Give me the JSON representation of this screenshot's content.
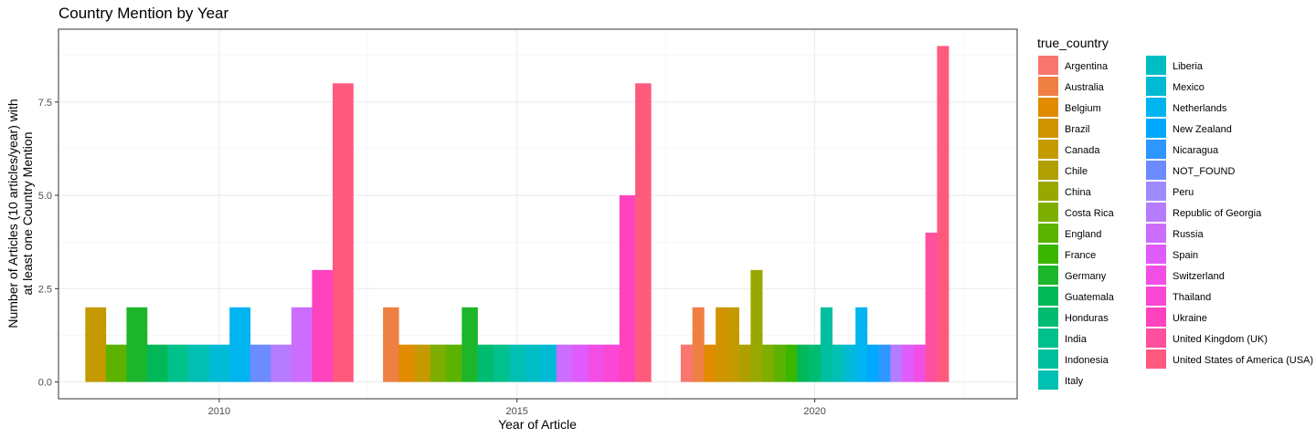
{
  "chart_data": {
    "type": "bar",
    "title": "Country Mention by Year",
    "xlabel": "Year of Article",
    "ylabel": [
      "Number of Articles (10 articles/year) with",
      "at least one Country Mention"
    ],
    "x_ticks": [
      2010,
      2015,
      2020
    ],
    "y_ticks": [
      "0.0",
      "2.5",
      "5.0",
      "7.5"
    ],
    "ylim": [
      0,
      9
    ],
    "grid": true,
    "legend_placement": "right",
    "legend_title": "true_country",
    "years": [
      2010,
      2015,
      2020
    ],
    "countries": [
      "Argentina",
      "Australia",
      "Belgium",
      "Brazil",
      "Canada",
      "Chile",
      "China",
      "Costa Rica",
      "England",
      "France",
      "Germany",
      "Guatemala",
      "Honduras",
      "India",
      "Indonesia",
      "Italy",
      "Liberia",
      "Mexico",
      "Netherlands",
      "New Zealand",
      "Nicaragua",
      "NOT_FOUND",
      "Peru",
      "Republic of Georgia",
      "Russia",
      "Spain",
      "Switzerland",
      "Thailand",
      "Ukraine",
      "United Kingdom (UK)",
      "United States of America (USA)"
    ],
    "colors": [
      "#F8766D",
      "#EE8044",
      "#E08B00",
      "#CF9400",
      "#C49A00",
      "#B09F00",
      "#99A800",
      "#7DAE00",
      "#5BB300",
      "#39B600",
      "#1CB52B",
      "#00B858",
      "#00BC72",
      "#00C08B",
      "#00BF9E",
      "#00BFB3",
      "#00BDC4",
      "#00BAD6",
      "#00B4EF",
      "#00A9FF",
      "#2E96FF",
      "#6B8BFF",
      "#A08AFF",
      "#B57CFF",
      "#CB6EFF",
      "#E05BFB",
      "#F04EE4",
      "#FA47D6",
      "#FF42BD",
      "#FF4F9F",
      "#FF5A7E"
    ],
    "series": [
      {
        "year": 2010,
        "bars": [
          {
            "country": "Canada",
            "value": 2
          },
          {
            "country": "England",
            "value": 1
          },
          {
            "country": "Germany",
            "value": 2
          },
          {
            "country": "Guatemala",
            "value": 1
          },
          {
            "country": "India",
            "value": 1
          },
          {
            "country": "Italy",
            "value": 1
          },
          {
            "country": "Mexico",
            "value": 1
          },
          {
            "country": "Netherlands",
            "value": 2
          },
          {
            "country": "NOT_FOUND",
            "value": 1
          },
          {
            "country": "Republic of Georgia",
            "value": 1
          },
          {
            "country": "Russia",
            "value": 2
          },
          {
            "country": "Ukraine",
            "value": 3
          },
          {
            "country": "United States of America (USA)",
            "value": 8
          }
        ]
      },
      {
        "year": 2015,
        "bars": [
          {
            "country": "Australia",
            "value": 2
          },
          {
            "country": "Belgium",
            "value": 1
          },
          {
            "country": "Canada",
            "value": 1
          },
          {
            "country": "Costa Rica",
            "value": 1
          },
          {
            "country": "England",
            "value": 1
          },
          {
            "country": "Germany",
            "value": 2
          },
          {
            "country": "Honduras",
            "value": 1
          },
          {
            "country": "India",
            "value": 1
          },
          {
            "country": "Italy",
            "value": 1
          },
          {
            "country": "Liberia",
            "value": 1
          },
          {
            "country": "Mexico",
            "value": 1
          },
          {
            "country": "Russia",
            "value": 1
          },
          {
            "country": "Spain",
            "value": 1
          },
          {
            "country": "Switzerland",
            "value": 1
          },
          {
            "country": "Thailand",
            "value": 1
          },
          {
            "country": "Ukraine",
            "value": 5
          },
          {
            "country": "United States of America (USA)",
            "value": 8
          }
        ]
      },
      {
        "year": 2020,
        "bars": [
          {
            "country": "Argentina",
            "value": 1
          },
          {
            "country": "Australia",
            "value": 2
          },
          {
            "country": "Belgium",
            "value": 1
          },
          {
            "country": "Brazil",
            "value": 2
          },
          {
            "country": "Canada",
            "value": 2
          },
          {
            "country": "Chile",
            "value": 1
          },
          {
            "country": "China",
            "value": 3
          },
          {
            "country": "Costa Rica",
            "value": 1
          },
          {
            "country": "England",
            "value": 1
          },
          {
            "country": "France",
            "value": 1
          },
          {
            "country": "Guatemala",
            "value": 1
          },
          {
            "country": "Honduras",
            "value": 1
          },
          {
            "country": "Indonesia",
            "value": 2
          },
          {
            "country": "Italy",
            "value": 1
          },
          {
            "country": "Mexico",
            "value": 1
          },
          {
            "country": "Netherlands",
            "value": 2
          },
          {
            "country": "New Zealand",
            "value": 1
          },
          {
            "country": "Nicaragua",
            "value": 1
          },
          {
            "country": "Republic of Georgia",
            "value": 1
          },
          {
            "country": "Spain",
            "value": 1
          },
          {
            "country": "Switzerland",
            "value": 1
          },
          {
            "country": "United Kingdom (UK)",
            "value": 4
          },
          {
            "country": "United States of America (USA)",
            "value": 9
          }
        ]
      }
    ]
  }
}
